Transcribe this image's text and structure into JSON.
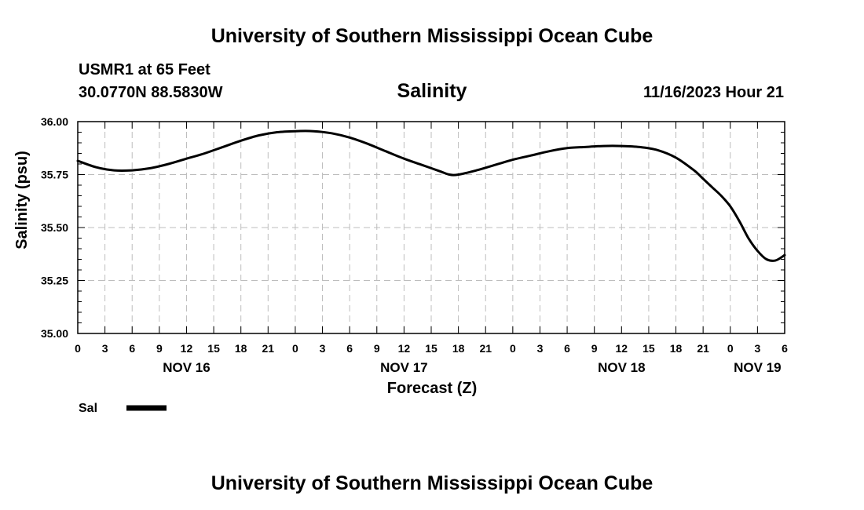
{
  "header": {
    "title": "University of Southern Mississippi Ocean Cube",
    "station": "USMR1 at 65 Feet",
    "coordinates": "30.0770N  88.5830W",
    "datetime": "11/16/2023 Hour 21"
  },
  "footer": {
    "title": "University of Southern Mississippi Ocean Cube"
  },
  "legend": {
    "label": "Sal",
    "color": "#000000"
  },
  "chart_data": {
    "type": "line",
    "title": "Salinity",
    "xlabel": "Forecast (Z)",
    "ylabel": "Salinity (psu)",
    "xlim": [
      0,
      78
    ],
    "ylim": [
      35.0,
      36.0
    ],
    "grid": true,
    "y_ticks": [
      "35.00",
      "35.25",
      "35.50",
      "35.75",
      "36.00"
    ],
    "x_tick_labels": [
      "0",
      "3",
      "6",
      "9",
      "12",
      "15",
      "18",
      "21",
      "0",
      "3",
      "6",
      "9",
      "12",
      "15",
      "18",
      "21",
      "0",
      "3",
      "6",
      "9",
      "12",
      "15",
      "18",
      "21",
      "0",
      "3",
      "6"
    ],
    "day_labels": [
      {
        "label": "NOV 16",
        "hour": 12
      },
      {
        "label": "NOV 17",
        "hour": 36
      },
      {
        "label": "NOV 18",
        "hour": 60
      },
      {
        "label": "NOV 19",
        "hour": 75
      }
    ],
    "series": [
      {
        "name": "Sal",
        "x": [
          0,
          2,
          4,
          6,
          8,
          10,
          12,
          14,
          16,
          18,
          20,
          22,
          24,
          26,
          28,
          30,
          32,
          34,
          36,
          38,
          40,
          41,
          42,
          44,
          46,
          48,
          50,
          52,
          54,
          56,
          58,
          60,
          62,
          64,
          66,
          68,
          69,
          70,
          71,
          72,
          73,
          74,
          75,
          76,
          77,
          78
        ],
        "values": [
          35.815,
          35.785,
          35.77,
          35.77,
          35.78,
          35.8,
          35.825,
          35.85,
          35.88,
          35.91,
          35.935,
          35.95,
          35.955,
          35.955,
          35.945,
          35.925,
          35.895,
          35.86,
          35.825,
          35.795,
          35.765,
          35.75,
          35.75,
          35.77,
          35.795,
          35.82,
          35.84,
          35.86,
          35.875,
          35.88,
          35.885,
          35.885,
          35.88,
          35.865,
          35.83,
          35.77,
          35.73,
          35.69,
          35.65,
          35.6,
          35.53,
          35.45,
          35.39,
          35.35,
          35.345,
          35.37
        ]
      }
    ]
  }
}
